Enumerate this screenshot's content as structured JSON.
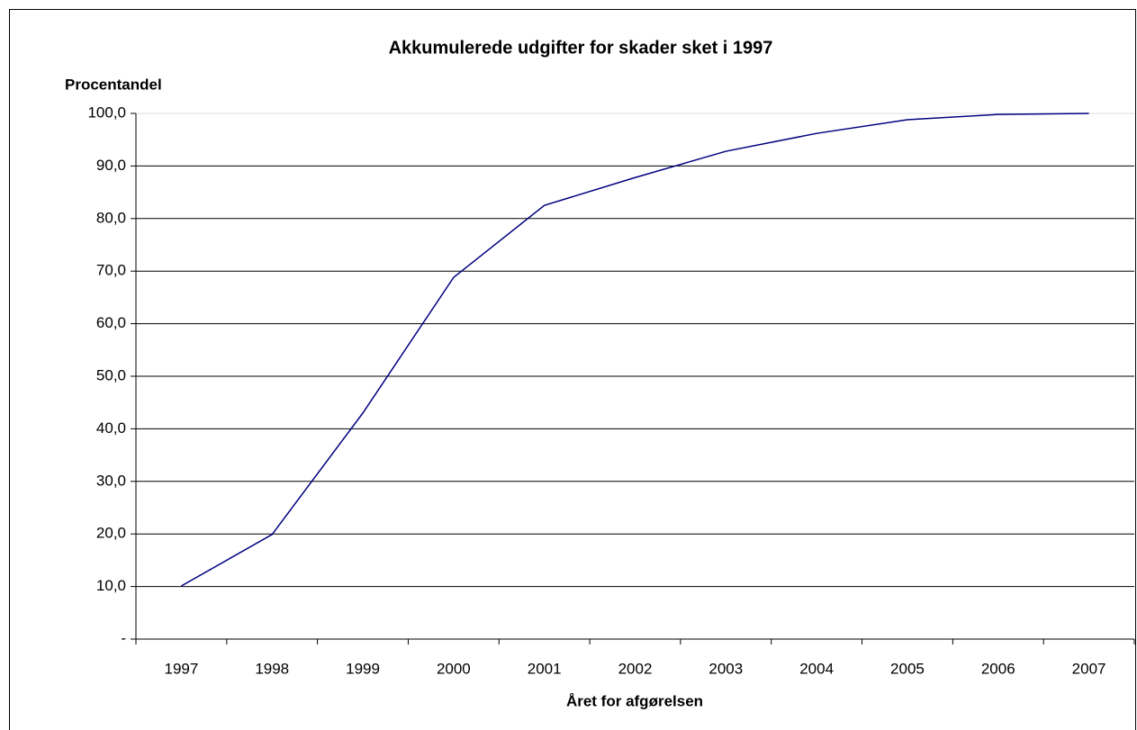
{
  "chart_data": {
    "type": "line",
    "title": "Akkumulerede udgifter for skader sket i 1997",
    "y_label": "Procentandel",
    "x_label": "Året for afgørelsen",
    "categories": [
      "1997",
      "1998",
      "1999",
      "2000",
      "2001",
      "2002",
      "2003",
      "2004",
      "2005",
      "2006",
      "2007"
    ],
    "values": [
      10.1,
      19.9,
      43.0,
      68.8,
      82.5,
      87.8,
      92.8,
      96.2,
      98.8,
      99.8,
      100.0
    ],
    "color": "#000080",
    "ylim": [
      0,
      100
    ],
    "yticks": [
      {
        "value": 0,
        "label": "-"
      },
      {
        "value": 10,
        "label": "10,0"
      },
      {
        "value": 20,
        "label": "20,0"
      },
      {
        "value": 30,
        "label": "30,0"
      },
      {
        "value": 40,
        "label": "40,0"
      },
      {
        "value": 50,
        "label": "50,0"
      },
      {
        "value": 60,
        "label": "60,0"
      },
      {
        "value": 70,
        "label": "70,0"
      },
      {
        "value": 80,
        "label": "80,0"
      },
      {
        "value": 90,
        "label": "90,0"
      },
      {
        "value": 100,
        "label": "100,0"
      }
    ],
    "grid": true
  }
}
